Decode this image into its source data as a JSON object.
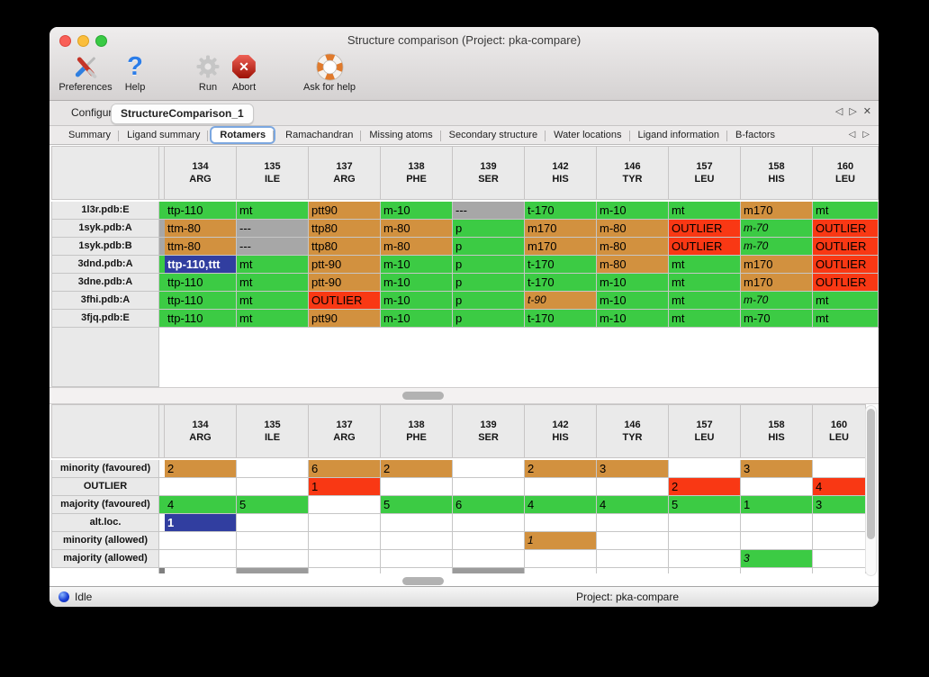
{
  "window": {
    "title": "Structure comparison (Project: pka-compare)"
  },
  "toolbar": {
    "items": [
      {
        "label": "Preferences",
        "icon": "preferences-tools-icon"
      },
      {
        "label": "Help",
        "icon": "help-question-icon"
      },
      {
        "label": "Run",
        "icon": "run-gear-icon"
      },
      {
        "label": "Abort",
        "icon": "abort-stop-icon"
      },
      {
        "label": "Ask for help",
        "icon": "ask-for-help-lifering-icon"
      }
    ]
  },
  "main_tabs": {
    "items": [
      {
        "label": "Configure",
        "selected": false
      },
      {
        "label": "StructureComparison_1",
        "selected": true
      }
    ],
    "nav_left": "◁",
    "nav_right": "▷",
    "close": "✕"
  },
  "sub_tabs": {
    "items": [
      {
        "label": "Summary",
        "selected": false
      },
      {
        "label": "Ligand summary",
        "selected": false
      },
      {
        "label": "Rotamers",
        "selected": true
      },
      {
        "label": "Ramachandran",
        "selected": false
      },
      {
        "label": "Missing atoms",
        "selected": false
      },
      {
        "label": "Secondary structure",
        "selected": false
      },
      {
        "label": "Water locations",
        "selected": false
      },
      {
        "label": "Ligand information",
        "selected": false
      },
      {
        "label": "B-factors",
        "selected": false
      }
    ],
    "nav_left": "◁",
    "nav_right": "▷"
  },
  "columns": [
    {
      "num": "134",
      "res": "ARG"
    },
    {
      "num": "135",
      "res": "ILE"
    },
    {
      "num": "137",
      "res": "ARG"
    },
    {
      "num": "138",
      "res": "PHE"
    },
    {
      "num": "139",
      "res": "SER"
    },
    {
      "num": "142",
      "res": "HIS"
    },
    {
      "num": "146",
      "res": "TYR"
    },
    {
      "num": "157",
      "res": "LEU"
    },
    {
      "num": "158",
      "res": "HIS"
    },
    {
      "num": "160",
      "res": "LEU"
    }
  ],
  "colors": {
    "green": "#3ccb44",
    "orange": "#d2913f",
    "red": "#f93814",
    "gray": "#a7a7a7",
    "blue": "#313ea0",
    "partial_gray": "#9b9b9b",
    "partial_strip": "#7f7f7f"
  },
  "top_table": {
    "rows": [
      {
        "label": "1l3r.pdb:E",
        "strip": "green",
        "cells": [
          {
            "t": "ttp-110",
            "c": "green"
          },
          {
            "t": "mt",
            "c": "green"
          },
          {
            "t": "ptt90",
            "c": "orange"
          },
          {
            "t": "m-10",
            "c": "green"
          },
          {
            "t": "---",
            "c": "gray"
          },
          {
            "t": "t-170",
            "c": "green"
          },
          {
            "t": "m-10",
            "c": "green"
          },
          {
            "t": "mt",
            "c": "green"
          },
          {
            "t": "m170",
            "c": "orange"
          },
          {
            "t": "mt",
            "c": "green"
          }
        ]
      },
      {
        "label": "1syk.pdb:A",
        "strip": "gray",
        "cells": [
          {
            "t": "ttm-80",
            "c": "orange"
          },
          {
            "t": "---",
            "c": "gray"
          },
          {
            "t": "ttp80",
            "c": "orange"
          },
          {
            "t": "m-80",
            "c": "orange"
          },
          {
            "t": "p",
            "c": "green"
          },
          {
            "t": "m170",
            "c": "orange"
          },
          {
            "t": "m-80",
            "c": "orange"
          },
          {
            "t": "OUTLIER",
            "c": "red"
          },
          {
            "t": "m-70",
            "c": "green",
            "i": 1
          },
          {
            "t": "OUTLIER",
            "c": "red"
          }
        ]
      },
      {
        "label": "1syk.pdb:B",
        "strip": "gray",
        "cells": [
          {
            "t": "ttm-80",
            "c": "orange"
          },
          {
            "t": "---",
            "c": "gray"
          },
          {
            "t": "ttp80",
            "c": "orange"
          },
          {
            "t": "m-80",
            "c": "orange"
          },
          {
            "t": "p",
            "c": "green"
          },
          {
            "t": "m170",
            "c": "orange"
          },
          {
            "t": "m-80",
            "c": "orange"
          },
          {
            "t": "OUTLIER",
            "c": "red"
          },
          {
            "t": "m-70",
            "c": "green",
            "i": 1
          },
          {
            "t": "OUTLIER",
            "c": "red"
          }
        ]
      },
      {
        "label": "3dnd.pdb:A",
        "strip": "green",
        "cells": [
          {
            "t": "ttp-110,ttt",
            "c": "blue",
            "s": 1
          },
          {
            "t": "mt",
            "c": "green"
          },
          {
            "t": "ptt-90",
            "c": "orange"
          },
          {
            "t": "m-10",
            "c": "green"
          },
          {
            "t": "p",
            "c": "green"
          },
          {
            "t": "t-170",
            "c": "green"
          },
          {
            "t": "m-80",
            "c": "orange"
          },
          {
            "t": "mt",
            "c": "green"
          },
          {
            "t": "m170",
            "c": "orange"
          },
          {
            "t": "OUTLIER",
            "c": "red"
          }
        ]
      },
      {
        "label": "3dne.pdb:A",
        "strip": "green",
        "cells": [
          {
            "t": "ttp-110",
            "c": "green"
          },
          {
            "t": "mt",
            "c": "green"
          },
          {
            "t": "ptt-90",
            "c": "orange"
          },
          {
            "t": "m-10",
            "c": "green"
          },
          {
            "t": "p",
            "c": "green"
          },
          {
            "t": "t-170",
            "c": "green"
          },
          {
            "t": "m-10",
            "c": "green"
          },
          {
            "t": "mt",
            "c": "green"
          },
          {
            "t": "m170",
            "c": "orange"
          },
          {
            "t": "OUTLIER",
            "c": "red"
          }
        ]
      },
      {
        "label": "3fhi.pdb:A",
        "strip": "green",
        "cells": [
          {
            "t": "ttp-110",
            "c": "green"
          },
          {
            "t": "mt",
            "c": "green"
          },
          {
            "t": "OUTLIER",
            "c": "red"
          },
          {
            "t": "m-10",
            "c": "green"
          },
          {
            "t": "p",
            "c": "green"
          },
          {
            "t": "t-90",
            "c": "orange",
            "i": 1
          },
          {
            "t": "m-10",
            "c": "green"
          },
          {
            "t": "mt",
            "c": "green"
          },
          {
            "t": "m-70",
            "c": "green",
            "i": 1
          },
          {
            "t": "mt",
            "c": "green"
          }
        ]
      },
      {
        "label": "3fjq.pdb:E",
        "strip": "green",
        "cells": [
          {
            "t": "ttp-110",
            "c": "green"
          },
          {
            "t": "mt",
            "c": "green"
          },
          {
            "t": "ptt90",
            "c": "orange"
          },
          {
            "t": "m-10",
            "c": "green"
          },
          {
            "t": "p",
            "c": "green"
          },
          {
            "t": "t-170",
            "c": "green"
          },
          {
            "t": "m-10",
            "c": "green"
          },
          {
            "t": "mt",
            "c": "green"
          },
          {
            "t": "m-70",
            "c": "green"
          },
          {
            "t": "mt",
            "c": "green"
          }
        ]
      }
    ]
  },
  "bottom_table": {
    "rows": [
      {
        "label": "minority (favoured)",
        "strip": null,
        "cells": [
          {
            "t": "2",
            "c": "orange"
          },
          {
            "t": "",
            "c": null
          },
          {
            "t": "6",
            "c": "orange"
          },
          {
            "t": "2",
            "c": "orange"
          },
          {
            "t": "",
            "c": null
          },
          {
            "t": "2",
            "c": "orange"
          },
          {
            "t": "3",
            "c": "orange"
          },
          {
            "t": "",
            "c": null
          },
          {
            "t": "3",
            "c": "orange"
          },
          {
            "t": "",
            "c": null
          }
        ]
      },
      {
        "label": "OUTLIER",
        "strip": null,
        "cells": [
          {
            "t": "",
            "c": null
          },
          {
            "t": "",
            "c": null
          },
          {
            "t": "1",
            "c": "red"
          },
          {
            "t": "",
            "c": null
          },
          {
            "t": "",
            "c": null
          },
          {
            "t": "",
            "c": null
          },
          {
            "t": "",
            "c": null
          },
          {
            "t": "2",
            "c": "red"
          },
          {
            "t": "",
            "c": null
          },
          {
            "t": "4",
            "c": "red"
          }
        ]
      },
      {
        "label": "majority (favoured)",
        "strip": "green",
        "cells": [
          {
            "t": "4",
            "c": "green"
          },
          {
            "t": "5",
            "c": "green"
          },
          {
            "t": "",
            "c": null
          },
          {
            "t": "5",
            "c": "green"
          },
          {
            "t": "6",
            "c": "green"
          },
          {
            "t": "4",
            "c": "green"
          },
          {
            "t": "4",
            "c": "green"
          },
          {
            "t": "5",
            "c": "green"
          },
          {
            "t": "1",
            "c": "green"
          },
          {
            "t": "3",
            "c": "green"
          }
        ]
      },
      {
        "label": "alt.loc.",
        "strip": null,
        "cells": [
          {
            "t": "1",
            "c": "blue",
            "s": 1
          },
          {
            "t": "",
            "c": null
          },
          {
            "t": "",
            "c": null
          },
          {
            "t": "",
            "c": null
          },
          {
            "t": "",
            "c": null
          },
          {
            "t": "",
            "c": null
          },
          {
            "t": "",
            "c": null
          },
          {
            "t": "",
            "c": null
          },
          {
            "t": "",
            "c": null
          },
          {
            "t": "",
            "c": null
          }
        ]
      },
      {
        "label": "minority (allowed)",
        "strip": null,
        "cells": [
          {
            "t": "",
            "c": null
          },
          {
            "t": "",
            "c": null
          },
          {
            "t": "",
            "c": null
          },
          {
            "t": "",
            "c": null
          },
          {
            "t": "",
            "c": null
          },
          {
            "t": "1",
            "c": "orange",
            "i": 1
          },
          {
            "t": "",
            "c": null
          },
          {
            "t": "",
            "c": null
          },
          {
            "t": "",
            "c": null
          },
          {
            "t": "",
            "c": null
          }
        ]
      },
      {
        "label": "majority (allowed)",
        "strip": null,
        "cells": [
          {
            "t": "",
            "c": null
          },
          {
            "t": "",
            "c": null
          },
          {
            "t": "",
            "c": null
          },
          {
            "t": "",
            "c": null
          },
          {
            "t": "",
            "c": null
          },
          {
            "t": "",
            "c": null
          },
          {
            "t": "",
            "c": null
          },
          {
            "t": "",
            "c": null
          },
          {
            "t": "3",
            "c": "green",
            "i": 1
          },
          {
            "t": "",
            "c": null
          }
        ]
      }
    ],
    "partial_row": {
      "gray_cols": [
        1,
        4
      ]
    }
  },
  "statusbar": {
    "status": "Idle",
    "project": "Project: pka-compare"
  }
}
